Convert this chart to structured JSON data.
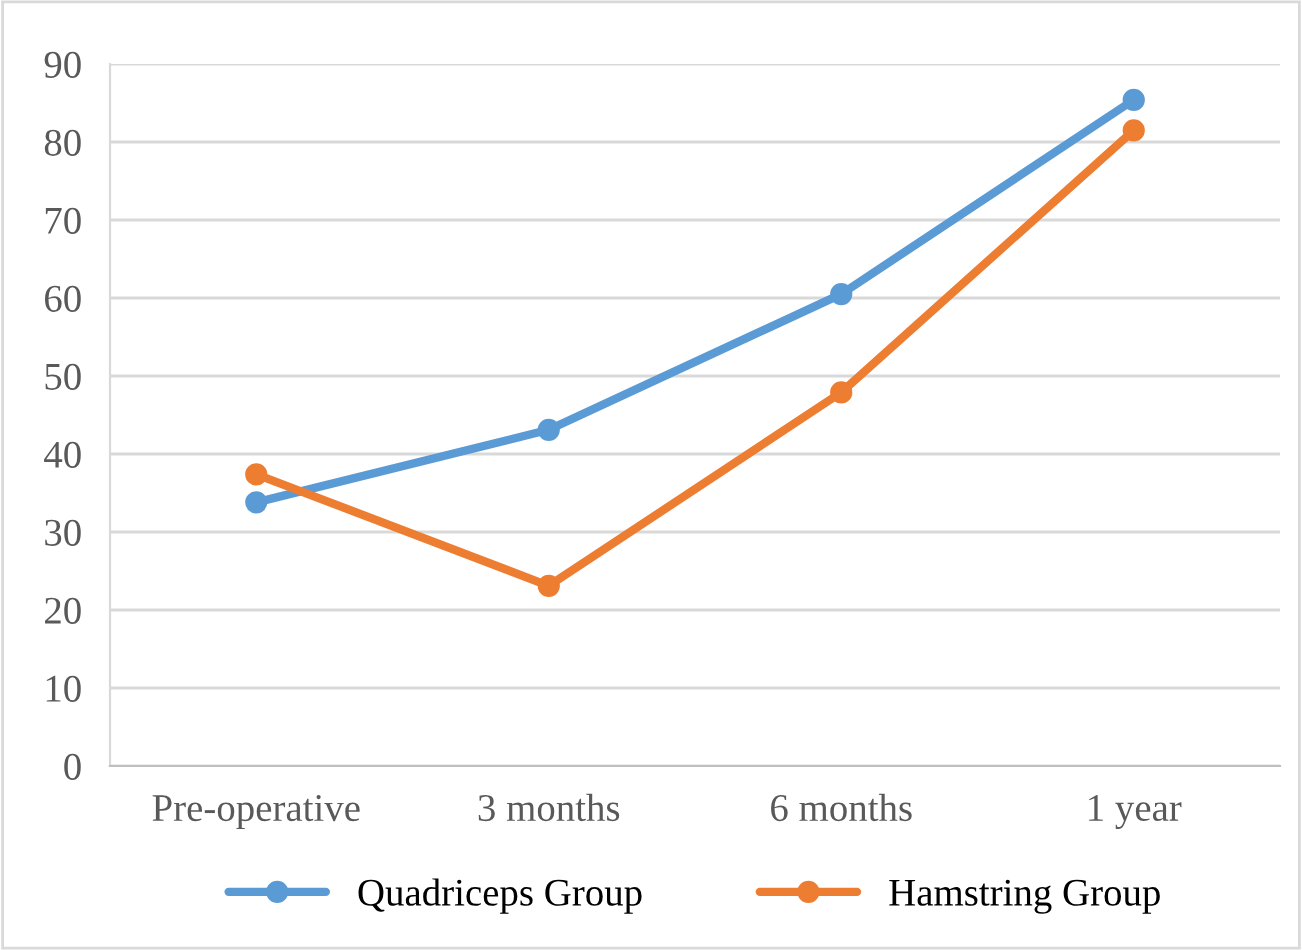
{
  "chart_data": {
    "type": "line",
    "categories": [
      "Pre-operative",
      "3 months",
      "6 months",
      "1 year"
    ],
    "series": [
      {
        "name": "Quadriceps Group",
        "color": "#5b9bd5",
        "values": [
          33.8,
          43.1,
          60.5,
          85.4
        ]
      },
      {
        "name": "Hamstring Group",
        "color": "#ed7d31",
        "values": [
          37.4,
          23.1,
          47.9,
          81.5
        ]
      }
    ],
    "ylim": [
      0,
      90
    ],
    "yticks": [
      0,
      10,
      20,
      30,
      40,
      50,
      60,
      70,
      80,
      90
    ],
    "grid": "y",
    "legend": "bottom",
    "marker": "circle",
    "line_style": "solid"
  }
}
